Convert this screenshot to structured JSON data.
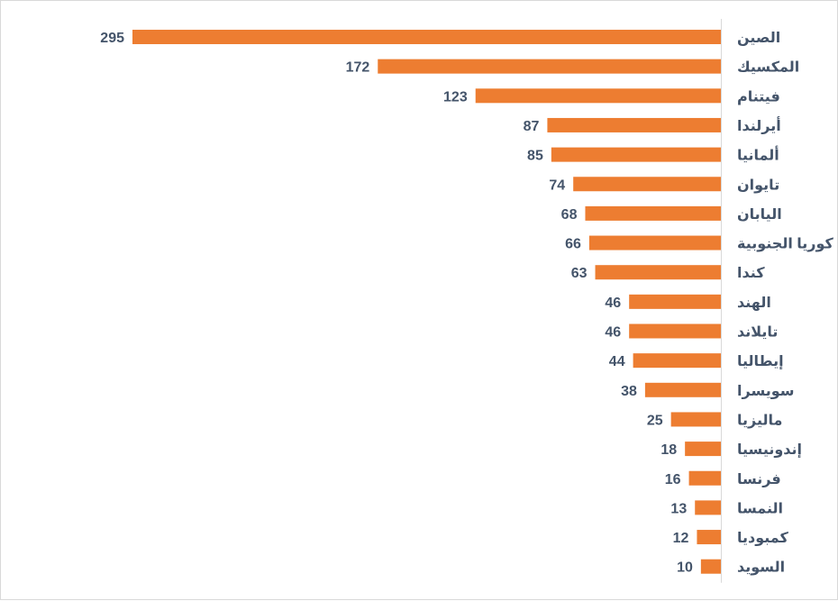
{
  "chart_data": {
    "type": "bar",
    "orientation": "horizontal",
    "direction": "rtl",
    "title": "",
    "xlabel": "",
    "ylabel": "",
    "categories": [
      "الصين",
      "المكسيك",
      "فيتنام",
      "أيرلندا",
      "ألمانيا",
      "تايوان",
      "اليابان",
      "كوريا الجنوبية",
      "كندا",
      "الهند",
      "تايلاند",
      "إيطاليا",
      "سويسرا",
      "ماليزيا",
      "إندونيسيا",
      "فرنسا",
      "النمسا",
      "كمبوديا",
      "السويد"
    ],
    "values": [
      295,
      172,
      123,
      87,
      85,
      74,
      68,
      66,
      63,
      46,
      46,
      44,
      38,
      25,
      18,
      16,
      13,
      12,
      10
    ],
    "xlim": [
      0,
      295
    ],
    "grid": false,
    "legend": "none",
    "bar_color": "#ed7d31",
    "label_color": "#44546a",
    "axis_color": "#d9d9d9"
  }
}
